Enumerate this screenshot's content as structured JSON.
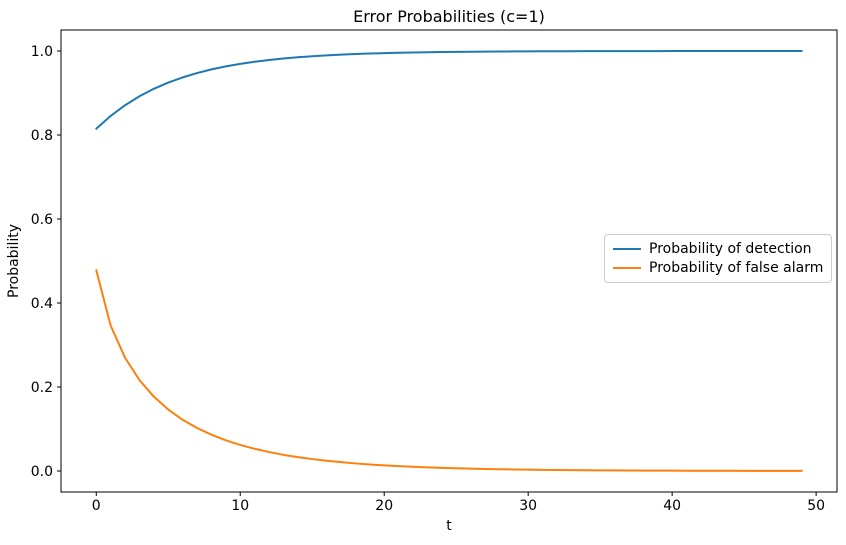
{
  "figure": {
    "background": "#ffffff"
  },
  "chart_data": {
    "type": "line",
    "title": "Error Probabilities (c=1)",
    "xlabel": "t",
    "ylabel": "Probability",
    "grid": false,
    "legend_position": "center right",
    "axis_color": "#000000",
    "legend_border_color": "#cccccc",
    "xlim": [
      -2.45,
      51.45
    ],
    "ylim": [
      -0.05,
      1.05
    ],
    "x_ticks": {
      "values": [
        0,
        10,
        20,
        30,
        40,
        50
      ],
      "labels": [
        "0",
        "10",
        "20",
        "30",
        "40",
        "50"
      ]
    },
    "y_ticks": {
      "values": [
        0.0,
        0.2,
        0.4,
        0.6,
        0.8,
        1.0
      ],
      "labels": [
        "0.0",
        "0.2",
        "0.4",
        "0.6",
        "0.8",
        "1.0"
      ]
    },
    "x": [
      0,
      1,
      2,
      3,
      4,
      5,
      6,
      7,
      8,
      9,
      10,
      11,
      12,
      13,
      14,
      15,
      16,
      17,
      18,
      19,
      20,
      21,
      22,
      23,
      24,
      25,
      26,
      27,
      28,
      29,
      30,
      31,
      32,
      33,
      34,
      35,
      36,
      37,
      38,
      39,
      40,
      41,
      42,
      43,
      44,
      45,
      46,
      47,
      48,
      49
    ],
    "series": [
      {
        "name": "Probability of detection",
        "color": "#1f77b4",
        "values": [
          0.815,
          0.8455,
          0.8709,
          0.8922,
          0.91,
          0.9248,
          0.9372,
          0.9475,
          0.9562,
          0.9634,
          0.9694,
          0.9745,
          0.9787,
          0.9822,
          0.9851,
          0.9876,
          0.9896,
          0.9913,
          0.9928,
          0.9939,
          0.9949,
          0.9958,
          0.9965,
          0.9971,
          0.9975,
          0.9979,
          0.9983,
          0.9986,
          0.9988,
          0.999,
          0.9992,
          0.9993,
          0.9994,
          0.9995,
          0.9996,
          0.9997,
          0.9997,
          0.9998,
          0.9998,
          0.9998,
          0.9999,
          0.9999,
          0.9999,
          0.9999,
          0.9999,
          0.9999,
          1.0,
          1.0,
          1.0,
          1.0
        ]
      },
      {
        "name": "Probability of false alarm",
        "color": "#ff7f0e",
        "values": [
          0.4781,
          0.3462,
          0.2695,
          0.2165,
          0.177,
          0.1463,
          0.122,
          0.1024,
          0.0864,
          0.0731,
          0.0621,
          0.0529,
          0.0451,
          0.0385,
          0.0331,
          0.0284,
          0.0244,
          0.021,
          0.018,
          0.0155,
          0.0134,
          0.0116,
          0.01,
          0.0087,
          0.0075,
          0.0065,
          0.0056,
          0.0049,
          0.0042,
          0.0037,
          0.0032,
          0.0028,
          0.0024,
          0.0021,
          0.0018,
          0.0016,
          0.0014,
          0.0012,
          0.001,
          0.0009,
          0.0008,
          0.0007,
          0.0006,
          0.0005,
          0.0005,
          0.0004,
          0.0004,
          0.0003,
          0.0003,
          0.0002
        ]
      }
    ]
  }
}
